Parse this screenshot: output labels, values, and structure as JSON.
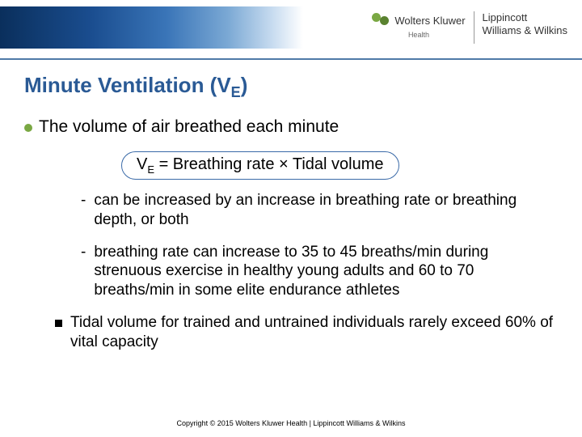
{
  "header": {
    "brand_primary": "Wolters Kluwer",
    "brand_primary_sub": "Health",
    "brand_secondary_line1": "Lippincott",
    "brand_secondary_line2": "Williams & Wilkins",
    "blue_gradient_start": "#0a2f5c",
    "blue_gradient_end": "#ffffff",
    "accent_line_color": "#4f7aa8"
  },
  "title": {
    "prefix": "Minute Ventilation (V",
    "subscript": "E",
    "suffix": ")",
    "color": "#2a5a95",
    "fontsize": 26
  },
  "bullet": {
    "text": "The volume of air breathed each minute",
    "dot_color": "#7aa843",
    "fontsize": 21
  },
  "formula": {
    "lhs_prefix": "V",
    "lhs_sub": "E",
    "rhs": " = Breathing rate × Tidal volume",
    "border_color": "#3a6aa8",
    "fontsize": 20
  },
  "sub_items": [
    "can be increased by an increase in breathing rate or breathing depth, or both",
    "breathing rate can increase to 35 to 45 breaths/min during strenuous exercise in healthy young adults and 60 to 70 breaths/min in some elite endurance athletes"
  ],
  "square_item": "Tidal volume for trained and untrained individuals rarely exceed 60% of vital capacity",
  "copyright": "Copyright © 2015 Wolters Kluwer Health | Lippincott Williams & Wilkins",
  "typography": {
    "body_font": "Verdana",
    "body_fontsize": 19,
    "copyright_fontsize": 9
  }
}
